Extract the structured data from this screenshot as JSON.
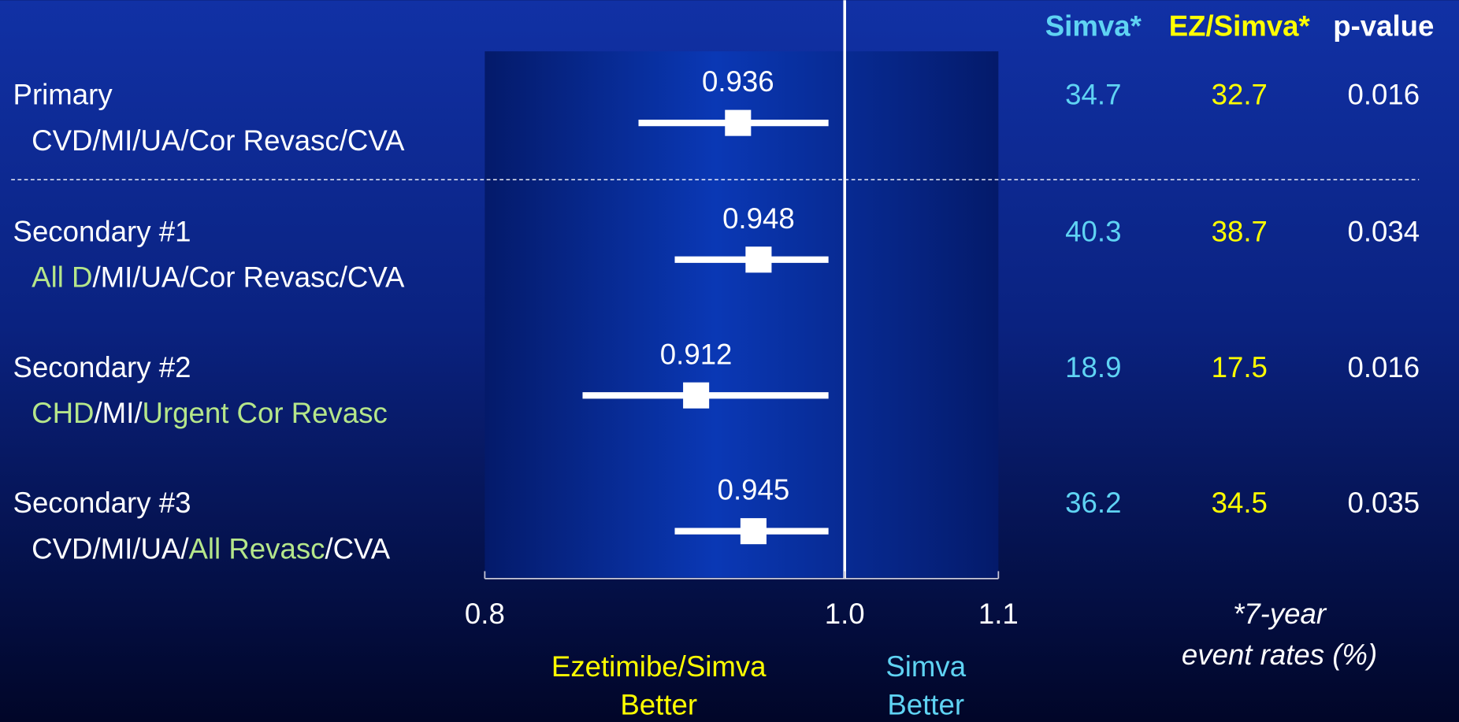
{
  "chart_data": {
    "type": "forest",
    "xscale": "log",
    "xlim": [
      0.8,
      1.1
    ],
    "xticks": [
      0.8,
      {
        "value": 1,
        "label": "1.0"
      },
      1.1
    ],
    "reference": 1,
    "rows": [
      {
        "label": "Primary",
        "sublabel": [
          {
            "text": "CVD/MI/UA/Cor Revasc/CVA",
            "color": "#ffffff"
          }
        ],
        "estimate": 0.936,
        "ci": [
          0.88,
          0.99
        ]
      },
      {
        "label": "Secondary #1",
        "sublabel": [
          {
            "text": "All D",
            "color": "#b5e68a"
          },
          {
            "text": "/MI/UA/Cor Revasc/CVA",
            "color": "#ffffff"
          }
        ],
        "estimate": 0.948,
        "ci": [
          0.9,
          0.99
        ]
      },
      {
        "label": "Secondary #2",
        "sublabel": [
          {
            "text": "CHD",
            "color": "#b5e68a"
          },
          {
            "text": "/MI/",
            "color": "#ffffff"
          },
          {
            "text": "Urgent Cor Revasc",
            "color": "#b5e68a"
          }
        ],
        "estimate": 0.912,
        "ci": [
          0.85,
          0.99
        ]
      },
      {
        "label": "Secondary #3",
        "sublabel": [
          {
            "text": "CVD/MI/UA/",
            "color": "#ffffff"
          },
          {
            "text": "All Revasc",
            "color": "#b5e68a"
          },
          {
            "text": "/CVA",
            "color": "#ffffff"
          }
        ],
        "estimate": 0.945,
        "ci": [
          0.9,
          0.99
        ]
      }
    ],
    "columns": [
      {
        "name": "Simva*",
        "color": "#5fd3f3",
        "values": [
          34.7,
          40.3,
          18.9,
          36.2
        ]
      },
      {
        "name": "EZ/Simva*",
        "color": "#ffff00",
        "values": [
          32.7,
          38.7,
          17.5,
          34.5
        ]
      },
      {
        "name": "p-value",
        "color": "#ffffff",
        "values": [
          0.016,
          0.034,
          0.016,
          0.035
        ]
      }
    ],
    "footnote": [
      "*7-year",
      "event rates (%)"
    ],
    "direction_labels": [
      {
        "lines": [
          "Ezetimibe/Simva",
          "Better"
        ],
        "color": "#ffff00"
      },
      {
        "lines": [
          "Simva",
          "Better"
        ],
        "color": "#5fd3f3"
      }
    ]
  }
}
